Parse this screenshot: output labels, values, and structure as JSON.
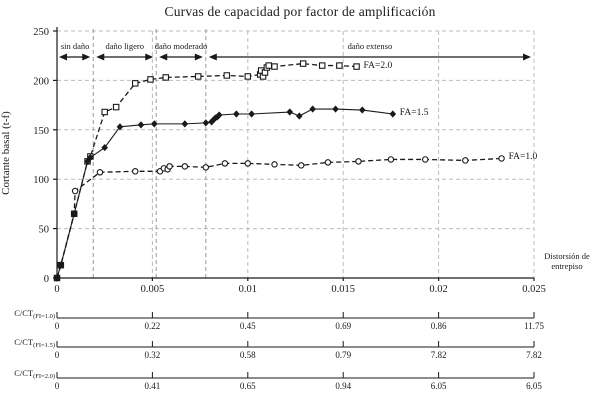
{
  "colors": {
    "ink": "#1a1a1a",
    "grid": "#bcbcbc",
    "boundary": "#9a9a9a",
    "background": "#ffffff"
  },
  "chart_data": {
    "type": "line",
    "title": "Curvas de capacidad por factor de amplificación",
    "xlabel": "Distorsión de entrepiso",
    "ylabel": "Cortante basal (t-f)",
    "xlim": [
      0,
      0.025
    ],
    "ylim": [
      0,
      250
    ],
    "grid": true,
    "x_ticks": [
      0,
      0.005,
      0.01,
      0.015,
      0.02,
      0.025
    ],
    "x_tick_labels": [
      "0",
      "0.005",
      "0.01",
      "0.015",
      "0.02",
      "0.025"
    ],
    "y_ticks": [
      0,
      50,
      100,
      150,
      200,
      250
    ],
    "y_tick_labels": [
      "0",
      "50",
      "100",
      "150",
      "200",
      "250"
    ],
    "zones": [
      {
        "label": "sin daño",
        "from": 0,
        "to": 0.0019
      },
      {
        "label": "daño ligero",
        "from": 0.0019,
        "to": 0.0052
      },
      {
        "label": "daño moderado",
        "from": 0.0052,
        "to": 0.0078
      },
      {
        "label": "daño extenso",
        "from": 0.0078,
        "to": 0.025
      }
    ],
    "series": [
      {
        "name": "FA=2.0",
        "marker": "square-open",
        "line": "dashed",
        "x": [
          0,
          0.0002,
          0.0009,
          0.0016,
          0.00175,
          0.0025,
          0.0031,
          0.0041,
          0.0049,
          0.0057,
          0.0074,
          0.0089,
          0.01,
          0.01065,
          0.0107,
          0.0108,
          0.0109,
          0.011,
          0.0111,
          0.0114,
          0.0129,
          0.0139,
          0.0148,
          0.0157
        ],
        "y": [
          0,
          13,
          65,
          118,
          123,
          168,
          173,
          197,
          201,
          203,
          204,
          205,
          204,
          206,
          210,
          204,
          208,
          213,
          215,
          214,
          217,
          215,
          215,
          214
        ]
      },
      {
        "name": "FA=1.5",
        "marker": "diamond-filled",
        "line": "solid",
        "x": [
          0,
          0.0002,
          0.0009,
          0.0016,
          0.00175,
          0.0025,
          0.0033,
          0.0044,
          0.0051,
          0.0067,
          0.0078,
          0.0081,
          0.0082,
          0.0083,
          0.0084,
          0.0085,
          0.0094,
          0.0102,
          0.0122,
          0.0127,
          0.0134,
          0.0146,
          0.016,
          0.0176
        ],
        "y": [
          0,
          13,
          65,
          118,
          122,
          132,
          153,
          155,
          156,
          156,
          157,
          158,
          160,
          162,
          163,
          165,
          166,
          166,
          168,
          164,
          171,
          171,
          170,
          166
        ]
      },
      {
        "name": "FA=1.0",
        "marker": "circle-open",
        "line": "dashed",
        "x": [
          0,
          0.0002,
          0.0009,
          0.00095,
          0.00225,
          0.0041,
          0.0054,
          0.0056,
          0.0058,
          0.0059,
          0.0067,
          0.0078,
          0.0088,
          0.01,
          0.0114,
          0.0128,
          0.0142,
          0.0158,
          0.0175,
          0.0193,
          0.0214,
          0.0233
        ],
        "y": [
          0,
          13,
          65,
          88,
          107,
          108,
          108,
          111,
          110,
          113,
          113,
          112,
          116,
          116,
          115,
          114,
          117,
          118,
          120,
          120,
          119,
          121
        ]
      }
    ],
    "secondary_scales": [
      {
        "label_main": "C/CT",
        "label_sub": "(FI=1.0)",
        "values": [
          "0",
          "0.22",
          "0.45",
          "0.69",
          "0.86",
          "11.75"
        ]
      },
      {
        "label_main": "C/CT",
        "label_sub": "(FI=1.5)",
        "values": [
          "0",
          "0.32",
          "0.58",
          "0.79",
          "7.82",
          "7.82"
        ]
      },
      {
        "label_main": "C/CT",
        "label_sub": "(FI=2.0)",
        "values": [
          "0",
          "0.41",
          "0.65",
          "0.94",
          "6.05",
          "6.05"
        ]
      }
    ]
  }
}
